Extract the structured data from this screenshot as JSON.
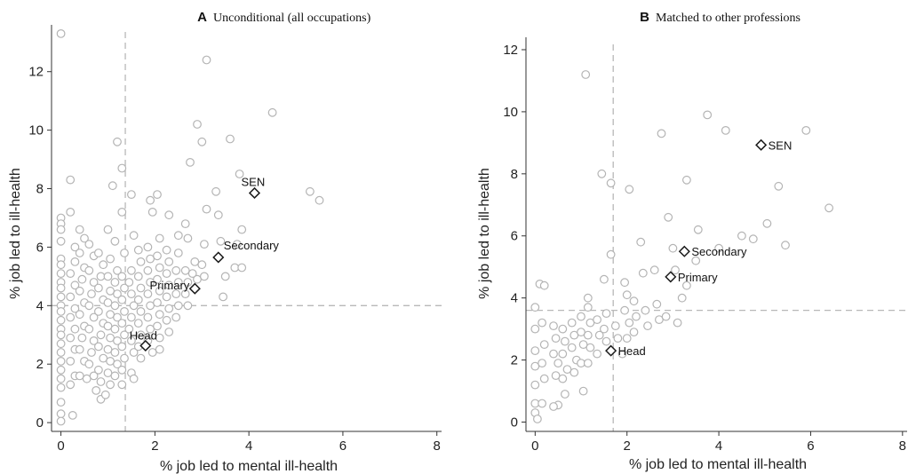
{
  "chart_data": [
    {
      "type": "scatter",
      "panel_letter": "A",
      "title": "Unconditional (all occupations)",
      "xlabel": "% job led to mental ill-health",
      "ylabel": "% job led to ill-health",
      "xlim": [
        -0.2,
        8.1
      ],
      "ylim": [
        -0.3,
        13.6
      ],
      "xticks": [
        0,
        2,
        4,
        6,
        8
      ],
      "yticks": [
        0,
        2,
        4,
        6,
        8,
        10,
        12
      ],
      "ref_x": 1.37,
      "ref_y": 4.0,
      "grid": false,
      "highlighted": [
        {
          "label": "SEN",
          "x": 4.12,
          "y": 7.85
        },
        {
          "label": "Secondary",
          "x": 3.35,
          "y": 5.65
        },
        {
          "label": "Primary",
          "x": 2.85,
          "y": 4.58
        },
        {
          "label": "Head",
          "x": 1.8,
          "y": 2.63
        }
      ],
      "points": [
        [
          0,
          13.3
        ],
        [
          0,
          7.0
        ],
        [
          0,
          6.8
        ],
        [
          0,
          6.6
        ],
        [
          0,
          6.2
        ],
        [
          0,
          5.6
        ],
        [
          0,
          5.4
        ],
        [
          0,
          5.1
        ],
        [
          0,
          4.8
        ],
        [
          0,
          4.6
        ],
        [
          0,
          4.3
        ],
        [
          0,
          4.0
        ],
        [
          0,
          3.8
        ],
        [
          0,
          3.5
        ],
        [
          0,
          3.2
        ],
        [
          0,
          3.0
        ],
        [
          0,
          2.7
        ],
        [
          0,
          2.4
        ],
        [
          0,
          2.1
        ],
        [
          0,
          1.8
        ],
        [
          0,
          1.5
        ],
        [
          0,
          1.2
        ],
        [
          0,
          0.7
        ],
        [
          0,
          0.3
        ],
        [
          0,
          0.05
        ],
        [
          0.2,
          8.3
        ],
        [
          0.2,
          7.2
        ],
        [
          0.3,
          6.0
        ],
        [
          0.3,
          5.5
        ],
        [
          0.2,
          5.1
        ],
        [
          0.3,
          4.7
        ],
        [
          0.2,
          4.3
        ],
        [
          0.3,
          3.9
        ],
        [
          0.2,
          3.6
        ],
        [
          0.3,
          3.2
        ],
        [
          0.2,
          2.9
        ],
        [
          0.3,
          2.5
        ],
        [
          0.2,
          2.1
        ],
        [
          0.3,
          1.6
        ],
        [
          0.2,
          1.3
        ],
        [
          0.25,
          0.25
        ],
        [
          0.4,
          6.6
        ],
        [
          0.5,
          6.3
        ],
        [
          0.4,
          5.8
        ],
        [
          0.5,
          5.3
        ],
        [
          0.45,
          4.9
        ],
        [
          0.4,
          4.5
        ],
        [
          0.5,
          4.1
        ],
        [
          0.4,
          3.7
        ],
        [
          0.5,
          3.3
        ],
        [
          0.45,
          2.9
        ],
        [
          0.4,
          2.5
        ],
        [
          0.5,
          2.1
        ],
        [
          0.4,
          1.6
        ],
        [
          0.55,
          1.5
        ],
        [
          0.6,
          6.1
        ],
        [
          0.7,
          5.7
        ],
        [
          0.6,
          5.2
        ],
        [
          0.7,
          4.8
        ],
        [
          0.65,
          4.4
        ],
        [
          0.6,
          4.0
        ],
        [
          0.7,
          3.6
        ],
        [
          0.6,
          3.2
        ],
        [
          0.7,
          2.8
        ],
        [
          0.65,
          2.4
        ],
        [
          0.6,
          2.0
        ],
        [
          0.7,
          1.6
        ],
        [
          0.75,
          1.1
        ],
        [
          0.8,
          5.8
        ],
        [
          0.9,
          5.4
        ],
        [
          0.85,
          5.0
        ],
        [
          0.8,
          4.6
        ],
        [
          0.9,
          4.2
        ],
        [
          0.8,
          3.8
        ],
        [
          0.9,
          3.4
        ],
        [
          0.85,
          3.0
        ],
        [
          0.8,
          2.6
        ],
        [
          0.9,
          2.2
        ],
        [
          0.8,
          1.8
        ],
        [
          0.85,
          1.4
        ],
        [
          0.85,
          0.8
        ],
        [
          0.95,
          0.95
        ],
        [
          1.0,
          6.6
        ],
        [
          1.05,
          5.6
        ],
        [
          1.0,
          5.0
        ],
        [
          1.05,
          4.5
        ],
        [
          1.0,
          4.1
        ],
        [
          1.05,
          3.7
        ],
        [
          1.0,
          3.3
        ],
        [
          1.05,
          2.9
        ],
        [
          1.0,
          2.5
        ],
        [
          1.05,
          2.1
        ],
        [
          1.0,
          1.7
        ],
        [
          1.05,
          1.3
        ],
        [
          1.1,
          8.1
        ],
        [
          1.15,
          6.2
        ],
        [
          1.2,
          5.2
        ],
        [
          1.15,
          4.8
        ],
        [
          1.2,
          4.4
        ],
        [
          1.15,
          4.0
        ],
        [
          1.2,
          3.6
        ],
        [
          1.15,
          3.2
        ],
        [
          1.2,
          2.8
        ],
        [
          1.15,
          2.4
        ],
        [
          1.2,
          2.0
        ],
        [
          1.15,
          1.6
        ],
        [
          1.2,
          9.6
        ],
        [
          1.3,
          8.7
        ],
        [
          1.3,
          7.2
        ],
        [
          1.35,
          5.8
        ],
        [
          1.3,
          5.0
        ],
        [
          1.35,
          4.6
        ],
        [
          1.3,
          4.2
        ],
        [
          1.35,
          3.8
        ],
        [
          1.3,
          3.4
        ],
        [
          1.35,
          3.0
        ],
        [
          1.3,
          2.6
        ],
        [
          1.35,
          2.2
        ],
        [
          1.3,
          1.8
        ],
        [
          1.3,
          1.3
        ],
        [
          1.5,
          7.8
        ],
        [
          1.55,
          6.4
        ],
        [
          1.5,
          5.2
        ],
        [
          1.45,
          4.8
        ],
        [
          1.5,
          4.4
        ],
        [
          1.55,
          4.0
        ],
        [
          1.5,
          3.6
        ],
        [
          1.45,
          3.2
        ],
        [
          1.5,
          2.8
        ],
        [
          1.55,
          2.4
        ],
        [
          1.5,
          1.7
        ],
        [
          1.55,
          1.5
        ],
        [
          1.65,
          5.9
        ],
        [
          1.7,
          5.5
        ],
        [
          1.65,
          5.0
        ],
        [
          1.7,
          4.6
        ],
        [
          1.65,
          4.2
        ],
        [
          1.7,
          3.8
        ],
        [
          1.65,
          3.4
        ],
        [
          1.7,
          3.0
        ],
        [
          1.65,
          2.6
        ],
        [
          1.7,
          2.2
        ],
        [
          1.9,
          7.6
        ],
        [
          1.95,
          7.2
        ],
        [
          1.85,
          6.0
        ],
        [
          1.9,
          5.6
        ],
        [
          1.85,
          5.2
        ],
        [
          1.9,
          4.8
        ],
        [
          1.85,
          4.4
        ],
        [
          1.9,
          4.0
        ],
        [
          1.85,
          3.6
        ],
        [
          1.9,
          3.2
        ],
        [
          1.85,
          2.8
        ],
        [
          1.95,
          2.4
        ],
        [
          2.05,
          7.8
        ],
        [
          2.1,
          6.3
        ],
        [
          2.05,
          5.7
        ],
        [
          2.1,
          5.3
        ],
        [
          2.05,
          4.9
        ],
        [
          2.1,
          4.5
        ],
        [
          2.05,
          4.1
        ],
        [
          2.1,
          3.7
        ],
        [
          2.05,
          3.3
        ],
        [
          2.1,
          2.9
        ],
        [
          2.1,
          2.5
        ],
        [
          2.3,
          7.1
        ],
        [
          2.25,
          5.9
        ],
        [
          2.3,
          5.5
        ],
        [
          2.25,
          5.1
        ],
        [
          2.3,
          4.7
        ],
        [
          2.25,
          4.3
        ],
        [
          2.3,
          3.9
        ],
        [
          2.25,
          3.5
        ],
        [
          2.3,
          3.1
        ],
        [
          2.5,
          6.4
        ],
        [
          2.5,
          5.8
        ],
        [
          2.45,
          5.2
        ],
        [
          2.5,
          4.8
        ],
        [
          2.45,
          4.4
        ],
        [
          2.5,
          4.0
        ],
        [
          2.45,
          3.6
        ],
        [
          2.65,
          6.8
        ],
        [
          2.7,
          6.3
        ],
        [
          2.65,
          5.2
        ],
        [
          2.7,
          4.8
        ],
        [
          2.65,
          4.4
        ],
        [
          2.7,
          4.0
        ],
        [
          2.75,
          8.9
        ],
        [
          2.85,
          5.5
        ],
        [
          2.8,
          5.1
        ],
        [
          2.9,
          4.9
        ],
        [
          2.9,
          10.2
        ],
        [
          3.0,
          9.6
        ],
        [
          3.1,
          12.4
        ],
        [
          3.1,
          7.3
        ],
        [
          3.05,
          6.1
        ],
        [
          3.0,
          5.4
        ],
        [
          3.05,
          5.0
        ],
        [
          3.3,
          7.9
        ],
        [
          3.35,
          7.1
        ],
        [
          3.4,
          6.2
        ],
        [
          3.5,
          5.0
        ],
        [
          3.45,
          4.3
        ],
        [
          3.6,
          9.7
        ],
        [
          3.7,
          5.3
        ],
        [
          3.75,
          6.1
        ],
        [
          3.8,
          8.5
        ],
        [
          3.85,
          6.6
        ],
        [
          3.85,
          5.3
        ],
        [
          4.5,
          10.6
        ],
        [
          5.3,
          7.9
        ],
        [
          5.5,
          7.6
        ]
      ]
    },
    {
      "type": "scatter",
      "panel_letter": "B",
      "title": "Matched to other professions",
      "xlabel": "% job led to mental ill-health",
      "ylabel": "% job led to ill-health",
      "xlim": [
        -0.2,
        8.1
      ],
      "ylim": [
        -0.3,
        12.4
      ],
      "xticks": [
        0,
        2,
        4,
        6,
        8
      ],
      "yticks": [
        0,
        2,
        4,
        6,
        8,
        10,
        12
      ],
      "ref_x": 1.7,
      "ref_y": 3.6,
      "grid": false,
      "highlighted": [
        {
          "label": "SEN",
          "x": 4.92,
          "y": 8.93
        },
        {
          "label": "Secondary",
          "x": 3.25,
          "y": 5.5
        },
        {
          "label": "Primary",
          "x": 2.95,
          "y": 4.68
        },
        {
          "label": "Head",
          "x": 1.65,
          "y": 2.3
        }
      ],
      "points": [
        [
          0,
          3.7
        ],
        [
          0,
          3.0
        ],
        [
          0,
          2.3
        ],
        [
          0,
          1.8
        ],
        [
          0,
          1.2
        ],
        [
          0,
          0.6
        ],
        [
          0,
          0.3
        ],
        [
          0.05,
          0.1
        ],
        [
          0.1,
          4.45
        ],
        [
          0.2,
          4.4
        ],
        [
          0.15,
          3.2
        ],
        [
          0.2,
          2.5
        ],
        [
          0.15,
          1.9
        ],
        [
          0.2,
          1.4
        ],
        [
          0.15,
          0.6
        ],
        [
          0.4,
          3.1
        ],
        [
          0.45,
          2.7
        ],
        [
          0.4,
          2.2
        ],
        [
          0.5,
          1.9
        ],
        [
          0.45,
          1.5
        ],
        [
          0.5,
          0.55
        ],
        [
          0.4,
          0.5
        ],
        [
          0.6,
          3.0
        ],
        [
          0.65,
          2.6
        ],
        [
          0.6,
          2.2
        ],
        [
          0.7,
          1.7
        ],
        [
          0.6,
          1.4
        ],
        [
          0.65,
          0.9
        ],
        [
          0.8,
          3.2
        ],
        [
          0.85,
          2.8
        ],
        [
          0.8,
          2.4
        ],
        [
          0.9,
          2.0
        ],
        [
          0.85,
          1.6
        ],
        [
          1.0,
          3.4
        ],
        [
          1.0,
          2.9
        ],
        [
          1.05,
          2.5
        ],
        [
          1.0,
          1.9
        ],
        [
          1.05,
          1.0
        ],
        [
          1.1,
          11.2
        ],
        [
          1.15,
          4.0
        ],
        [
          1.15,
          3.7
        ],
        [
          1.2,
          3.2
        ],
        [
          1.15,
          2.8
        ],
        [
          1.2,
          2.4
        ],
        [
          1.15,
          1.9
        ],
        [
          1.35,
          3.3
        ],
        [
          1.4,
          2.8
        ],
        [
          1.35,
          2.2
        ],
        [
          1.45,
          8.0
        ],
        [
          1.5,
          4.6
        ],
        [
          1.55,
          3.5
        ],
        [
          1.5,
          3.0
        ],
        [
          1.55,
          2.6
        ],
        [
          1.65,
          7.7
        ],
        [
          1.65,
          5.4
        ],
        [
          1.75,
          3.1
        ],
        [
          1.8,
          2.7
        ],
        [
          1.95,
          4.5
        ],
        [
          2.0,
          4.1
        ],
        [
          1.95,
          3.6
        ],
        [
          2.05,
          3.2
        ],
        [
          2.0,
          2.7
        ],
        [
          1.9,
          2.2
        ],
        [
          2.05,
          7.5
        ],
        [
          2.15,
          3.9
        ],
        [
          2.2,
          3.4
        ],
        [
          2.15,
          2.9
        ],
        [
          2.3,
          5.8
        ],
        [
          2.35,
          4.8
        ],
        [
          2.4,
          3.6
        ],
        [
          2.45,
          3.1
        ],
        [
          2.6,
          4.9
        ],
        [
          2.65,
          3.8
        ],
        [
          2.7,
          3.3
        ],
        [
          2.75,
          9.3
        ],
        [
          2.85,
          3.4
        ],
        [
          2.9,
          6.6
        ],
        [
          3.0,
          5.6
        ],
        [
          3.05,
          4.9
        ],
        [
          3.1,
          3.2
        ],
        [
          3.2,
          4.0
        ],
        [
          3.3,
          7.8
        ],
        [
          3.3,
          4.4
        ],
        [
          3.5,
          5.2
        ],
        [
          3.55,
          6.2
        ],
        [
          3.75,
          9.9
        ],
        [
          4.0,
          5.6
        ],
        [
          4.15,
          9.4
        ],
        [
          4.5,
          6.0
        ],
        [
          4.75,
          5.9
        ],
        [
          5.05,
          6.4
        ],
        [
          5.3,
          7.6
        ],
        [
          5.45,
          5.7
        ],
        [
          5.9,
          9.4
        ],
        [
          6.4,
          6.9
        ]
      ]
    }
  ]
}
